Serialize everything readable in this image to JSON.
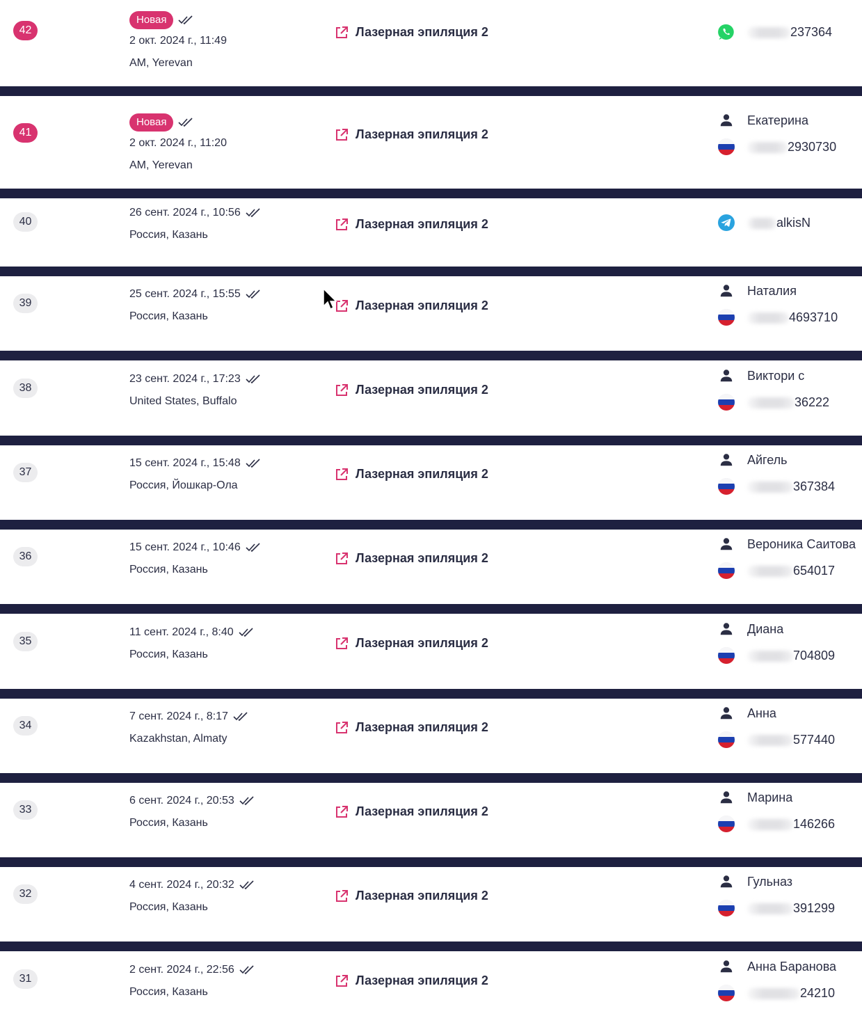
{
  "service_name": "Лазерная эпиляция 2",
  "new_label": "Новая",
  "colors": {
    "accent": "#d8336f",
    "separator": "#1e2040",
    "text": "#2b2e44",
    "whatsapp": "#25d366",
    "telegram": "#2aa3df"
  },
  "rows": [
    {
      "id": "42",
      "is_new": true,
      "datetime": "2 окт. 2024 г., 11:49",
      "location": "AM, Yerevan",
      "contact_type": "whatsapp",
      "name": "",
      "phone": "237364"
    },
    {
      "id": "41",
      "is_new": true,
      "datetime": "2 окт. 2024 г., 11:20",
      "location": "AM, Yerevan",
      "contact_type": "person",
      "name": "Екатерина",
      "phone": "2930730"
    },
    {
      "id": "40",
      "is_new": false,
      "datetime": "26 сент. 2024 г., 10:56",
      "location": "Россия, Казань",
      "contact_type": "telegram",
      "name": "",
      "phone": "alkisN"
    },
    {
      "id": "39",
      "is_new": false,
      "datetime": "25 сент. 2024 г., 15:55",
      "location": "Россия, Казань",
      "contact_type": "person",
      "name": "Наталия",
      "phone": "4693710"
    },
    {
      "id": "38",
      "is_new": false,
      "datetime": "23 сент. 2024 г., 17:23",
      "location": "United States, Buffalo",
      "contact_type": "person",
      "name": "Виктори с",
      "phone": "36222"
    },
    {
      "id": "37",
      "is_new": false,
      "datetime": "15 сент. 2024 г., 15:48",
      "location": "Россия, Йошкар-Ола",
      "contact_type": "person",
      "name": "Айгель",
      "phone": "367384"
    },
    {
      "id": "36",
      "is_new": false,
      "datetime": "15 сент. 2024 г., 10:46",
      "location": "Россия, Казань",
      "contact_type": "person",
      "name": "Вероника Саитова",
      "phone": "654017"
    },
    {
      "id": "35",
      "is_new": false,
      "datetime": "11 сент. 2024 г., 8:40",
      "location": "Россия, Казань",
      "contact_type": "person",
      "name": "Диана",
      "phone": "704809"
    },
    {
      "id": "34",
      "is_new": false,
      "datetime": "7 сент. 2024 г., 8:17",
      "location": "Kazakhstan, Almaty",
      "contact_type": "person",
      "name": "Анна",
      "phone": "577440"
    },
    {
      "id": "33",
      "is_new": false,
      "datetime": "6 сент. 2024 г., 20:53",
      "location": "Россия, Казань",
      "contact_type": "person",
      "name": "Марина",
      "phone": "146266"
    },
    {
      "id": "32",
      "is_new": false,
      "datetime": "4 сент. 2024 г., 20:32",
      "location": "Россия, Казань",
      "contact_type": "person",
      "name": "Гульназ",
      "phone": "391299"
    },
    {
      "id": "31",
      "is_new": false,
      "datetime": "2 сент. 2024 г., 22:56",
      "location": "Россия, Казань",
      "contact_type": "person",
      "name": "Анна Баранова",
      "phone": "24210"
    }
  ]
}
